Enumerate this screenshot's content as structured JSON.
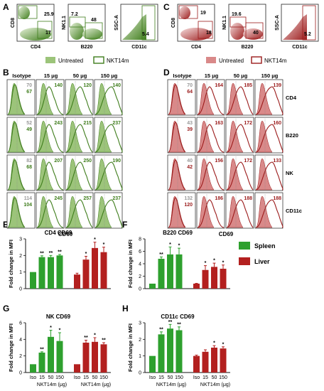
{
  "colors": {
    "green": "#3f7d1c",
    "green_fill": "#9cc47a",
    "green_bar": "#2ea02e",
    "red": "#9b1b1b",
    "red_fill": "#d98989",
    "red_bar": "#b3201f"
  },
  "panels": {
    "A": "A",
    "B": "B",
    "C": "C",
    "D": "D",
    "E": "E",
    "F": "F",
    "G": "G",
    "H": "H"
  },
  "flow": {
    "A": {
      "plot1": {
        "xlabel": "CD4",
        "ylabel": "CD8",
        "num1": "25.9",
        "num2": "17"
      },
      "plot2": {
        "xlabel": "B220",
        "ylabel": "NK1.1",
        "num1": "7.2",
        "num2": "48"
      },
      "plot3": {
        "xlabel": "CD11c",
        "ylabel": "SSC-A",
        "num1": "5.4"
      }
    },
    "C": {
      "plot1": {
        "xlabel": "CD4",
        "ylabel": "CD8",
        "num1": "19",
        "num2": "18"
      },
      "plot2": {
        "xlabel": "B220",
        "ylabel": "NK1.1",
        "num1": "19.6",
        "num2": "40"
      },
      "plot3": {
        "xlabel": "CD11c",
        "ylabel": "SSC-A",
        "num1": "5.2"
      }
    }
  },
  "legend_top": {
    "untreated": "Untreated",
    "treated": "NKT14m"
  },
  "hist": {
    "col_heads": [
      "Isotype",
      "15 μg",
      "50 μg",
      "150 μg"
    ],
    "xlabel": "CD69",
    "row_labels": [
      "CD4",
      "B220",
      "NK",
      "CD11c"
    ],
    "B": [
      [
        [
          "70",
          "67"
        ],
        "140",
        "120",
        "140"
      ],
      [
        [
          "52",
          "49"
        ],
        "243",
        "215",
        "237"
      ],
      [
        [
          "82",
          "68"
        ],
        "207",
        "250",
        "190"
      ],
      [
        [
          "114",
          "104"
        ],
        "245",
        "257",
        "237"
      ]
    ],
    "D": [
      [
        [
          "70",
          "64"
        ],
        "164",
        "185",
        "139"
      ],
      [
        [
          "43",
          "39"
        ],
        "163",
        "172",
        "160"
      ],
      [
        [
          "40",
          "42"
        ],
        "156",
        "172",
        "133"
      ],
      [
        [
          "132",
          "120"
        ],
        "186",
        "188",
        "188"
      ]
    ]
  },
  "legend_bars": {
    "spleen": "Spleen",
    "liver": "Liver"
  },
  "bar_common": {
    "ylabel": "Fold change in MFI",
    "cats": [
      "Iso",
      "15",
      "50",
      "150"
    ],
    "group_left": "NKT14m (μg)",
    "group_right": "NKT14m (μg)",
    "star": "*",
    "dstar": "**"
  },
  "chart_data": [
    {
      "type": "bar",
      "title": "CD4 CD69",
      "categories": [
        "Iso",
        "15",
        "50",
        "150"
      ],
      "ylim": [
        0,
        3
      ],
      "yticks": [
        "0",
        "1",
        "2",
        "3"
      ],
      "series": [
        {
          "name": "Spleen",
          "values": [
            1.0,
            1.9,
            1.9,
            2.0
          ],
          "errors": [
            0,
            0.08,
            0.1,
            0.06
          ],
          "sig": [
            "",
            "**",
            "**",
            "**"
          ]
        },
        {
          "name": "Liver",
          "values": [
            0.85,
            1.75,
            2.45,
            2.2
          ],
          "errors": [
            0.08,
            0.2,
            0.35,
            0.3
          ],
          "sig": [
            "",
            "*",
            "*",
            "*"
          ]
        }
      ]
    },
    {
      "type": "bar",
      "title": "B220 CD69",
      "categories": [
        "Iso",
        "15",
        "50",
        "150"
      ],
      "ylim": [
        0,
        8
      ],
      "yticks": [
        "0",
        "2",
        "4",
        "6",
        "8"
      ],
      "series": [
        {
          "name": "Spleen",
          "values": [
            0.8,
            4.8,
            5.5,
            5.5
          ],
          "errors": [
            0,
            0.3,
            1.2,
            1.0
          ],
          "sig": [
            "",
            "**",
            "*",
            "*"
          ]
        },
        {
          "name": "Liver",
          "values": [
            0.8,
            3.0,
            3.5,
            3.2
          ],
          "errors": [
            0.05,
            0.7,
            0.6,
            0.6
          ],
          "sig": [
            "",
            "*",
            "*",
            "*"
          ]
        }
      ]
    },
    {
      "type": "bar",
      "title": "NK CD69",
      "categories": [
        "Iso",
        "15",
        "50",
        "150"
      ],
      "ylim": [
        0,
        6
      ],
      "yticks": [
        "0",
        "2",
        "4",
        "6"
      ],
      "series": [
        {
          "name": "Spleen",
          "values": [
            1.0,
            2.4,
            4.3,
            3.8
          ],
          "errors": [
            0,
            0.1,
            0.8,
            1.0
          ],
          "sig": [
            "",
            "**",
            "*",
            "*"
          ]
        },
        {
          "name": "Liver",
          "values": [
            1.0,
            3.6,
            3.7,
            3.4
          ],
          "errors": [
            0,
            0.3,
            0.5,
            0.2
          ],
          "sig": [
            "",
            "**",
            "*",
            "**"
          ]
        }
      ]
    },
    {
      "type": "bar",
      "title": "CD11c CD69",
      "categories": [
        "Iso",
        "15",
        "50",
        "150"
      ],
      "ylim": [
        0,
        3
      ],
      "yticks": [
        "0",
        "1",
        "2",
        "3"
      ],
      "series": [
        {
          "name": "Spleen",
          "values": [
            1.0,
            2.3,
            2.65,
            2.55
          ],
          "errors": [
            0,
            0.15,
            0.25,
            0.2
          ],
          "sig": [
            "",
            "**",
            "**",
            "**"
          ]
        },
        {
          "name": "Liver",
          "values": [
            1.0,
            1.25,
            1.5,
            1.45
          ],
          "errors": [
            0.05,
            0.12,
            0.12,
            0.1
          ],
          "sig": [
            "",
            "",
            "*",
            "*"
          ]
        }
      ]
    }
  ]
}
